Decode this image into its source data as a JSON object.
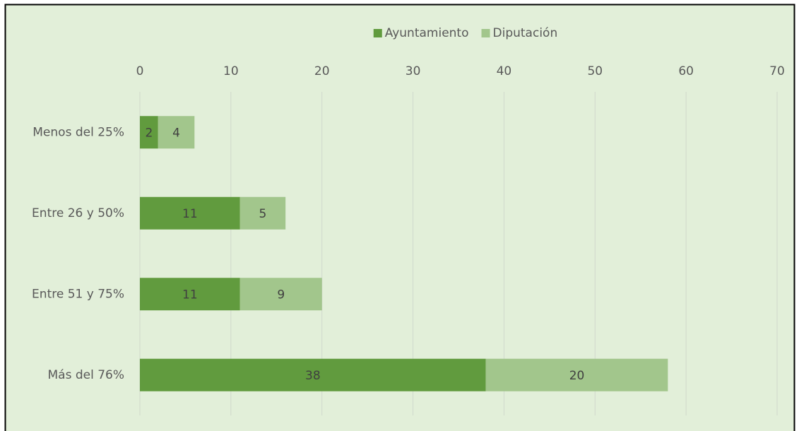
{
  "chart_data": {
    "type": "bar",
    "orientation": "horizontal",
    "stacked": true,
    "categories": [
      "Menos del 25%",
      "Entre 26 y 50%",
      "Entre 51 y 75%",
      "Más del 76%"
    ],
    "series": [
      {
        "name": "Ayuntamiento",
        "color": "#619b3e",
        "values": [
          2,
          11,
          11,
          38
        ]
      },
      {
        "name": "Diputación",
        "color": "#a2c68c",
        "values": [
          4,
          5,
          9,
          20
        ]
      }
    ],
    "xlim": [
      0,
      70
    ],
    "xticks": [
      0,
      10,
      20,
      30,
      40,
      50,
      60,
      70
    ],
    "grid": true,
    "legend": "top",
    "data_labels": true
  }
}
